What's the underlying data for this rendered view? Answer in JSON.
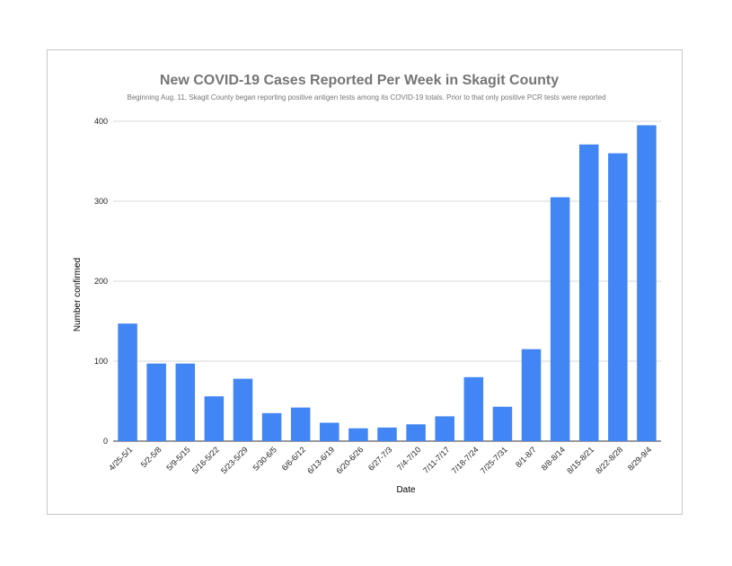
{
  "chart_data": {
    "type": "bar",
    "title": "New COVID-19 Cases Reported Per Week in Skagit County",
    "subtitle": "Beginning Aug. 11, Skagit County began reporting positive antigen tests among its COVID-19 totals. Prior to that only positive PCR tests were reported",
    "xlabel": "Date",
    "ylabel": "Number confirmed",
    "ylim": [
      0,
      400
    ],
    "yticks": [
      0,
      100,
      200,
      300,
      400
    ],
    "grid": true,
    "color": "#4285f4",
    "categories": [
      "4/25-5/1",
      "5/2-5/8",
      "5/9-5/15",
      "5/16-5/22",
      "5/23-5/29",
      "5/30-6/5",
      "6/6-6/12",
      "6/13-6/19",
      "6/20-6/26",
      "6/27-7/3",
      "7/4-7/10",
      "7/11-7/17",
      "7/18-7/24",
      "7/25-7/31",
      "8/1-8/7",
      "8/8-8/14",
      "8/15-8/21",
      "8/22-8/28",
      "8/29-9/4"
    ],
    "values": [
      147,
      97,
      97,
      56,
      78,
      35,
      42,
      23,
      16,
      17,
      21,
      31,
      80,
      43,
      115,
      305,
      371,
      360,
      395
    ]
  }
}
